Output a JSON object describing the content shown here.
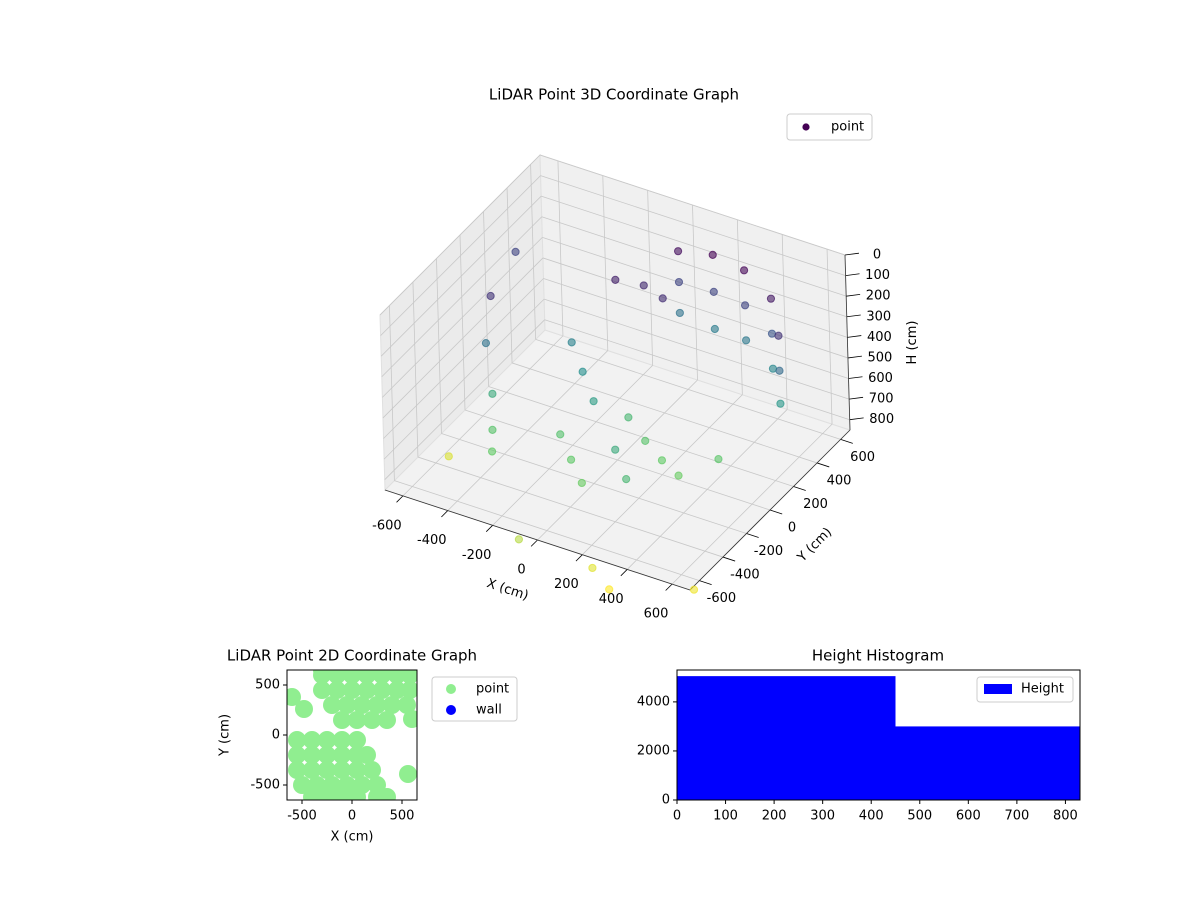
{
  "chart_data": [
    {
      "type": "scatter3d",
      "title": "LiDAR Point 3D Coordinate Graph",
      "xlabel": "X (cm)",
      "ylabel": "Y (cm)",
      "zlabel": "H (cm)",
      "xlim": [
        -680,
        680
      ],
      "ylim": [
        -680,
        680
      ],
      "zlim": [
        850,
        0
      ],
      "xticks": [
        -600,
        -400,
        -200,
        0,
        200,
        400,
        600
      ],
      "yticks": [
        -600,
        -400,
        -200,
        0,
        200,
        400,
        600
      ],
      "zticks": [
        0,
        100,
        200,
        300,
        400,
        500,
        600,
        700,
        800
      ],
      "colormap": "viridis",
      "grid": true,
      "legend": "upper right",
      "series": [
        {
          "name": "point",
          "color": "#440154",
          "x": [
            0,
            0,
            0,
            150,
            150,
            150,
            300,
            300,
            300,
            450,
            450,
            450,
            550,
            550,
            550,
            -550,
            -550,
            -500,
            -450,
            -400,
            0,
            100,
            200,
            300,
            400,
            -200,
            -100,
            0,
            -150,
            -50,
            50,
            -300,
            -200,
            -100,
            100,
            200,
            -650,
            300,
            600,
            200,
            -100,
            -650
          ],
          "y": [
            550,
            550,
            550,
            560,
            560,
            560,
            540,
            540,
            540,
            480,
            480,
            480,
            350,
            350,
            350,
            0,
            -50,
            -100,
            -200,
            -300,
            100,
            50,
            0,
            -50,
            100,
            -100,
            -200,
            -300,
            300,
            350,
            320,
            200,
            100,
            0,
            -200,
            -300,
            -200,
            -650,
            -500,
            -600,
            -650,
            400
          ],
          "z": [
            150,
            300,
            450,
            120,
            300,
            480,
            130,
            300,
            470,
            180,
            350,
            520,
            250,
            420,
            580,
            250,
            450,
            650,
            750,
            780,
            700,
            750,
            780,
            790,
            760,
            740,
            770,
            790,
            200,
            220,
            230,
            500,
            550,
            600,
            650,
            700,
            950,
            1000,
            980,
            960,
            900,
            300
          ]
        }
      ]
    },
    {
      "type": "scatter",
      "title": "LiDAR Point 2D Coordinate Graph",
      "xlabel": "X (cm)",
      "ylabel": "Y (cm)",
      "xlim": [
        -650,
        650
      ],
      "ylim": [
        -650,
        650
      ],
      "xticks": [
        -500,
        0,
        500
      ],
      "yticks": [
        -500,
        0,
        500
      ],
      "legend": "outside right",
      "series": [
        {
          "name": "point",
          "color": "#90ee90",
          "x": [
            -300,
            -150,
            0,
            150,
            300,
            450,
            580,
            -300,
            -150,
            0,
            150,
            300,
            450,
            580,
            -200,
            -50,
            100,
            250,
            400,
            550,
            -100,
            50,
            200,
            350,
            -550,
            -400,
            -250,
            -100,
            50,
            -550,
            -400,
            -250,
            -100,
            50,
            150,
            -550,
            -400,
            -250,
            -100,
            50,
            200,
            -500,
            -350,
            -200,
            -50,
            100,
            250,
            -400,
            -250,
            -100,
            50,
            250,
            350,
            -600,
            -480,
            600,
            560,
            -300
          ],
          "y": [
            600,
            600,
            600,
            600,
            600,
            600,
            600,
            450,
            450,
            450,
            450,
            450,
            450,
            450,
            300,
            300,
            300,
            300,
            300,
            300,
            150,
            150,
            150,
            150,
            -50,
            -50,
            -50,
            -50,
            -50,
            -200,
            -200,
            -200,
            -200,
            -200,
            -200,
            -350,
            -350,
            -350,
            -350,
            -350,
            -350,
            -500,
            -500,
            -500,
            -500,
            -500,
            -500,
            -620,
            -620,
            -620,
            -620,
            -620,
            -620,
            380,
            260,
            160,
            -390,
            650
          ]
        },
        {
          "name": "wall",
          "color": "#0000ff",
          "x": [],
          "y": []
        }
      ]
    },
    {
      "type": "histogram",
      "title": "Height Histogram",
      "bins": [
        0,
        450,
        830
      ],
      "xlim": [
        0,
        830
      ],
      "ylim": [
        0,
        5300
      ],
      "xticks": [
        0,
        100,
        200,
        300,
        400,
        500,
        600,
        700,
        800
      ],
      "yticks": [
        0,
        2000,
        4000
      ],
      "legend": "upper right",
      "series": [
        {
          "name": "Height",
          "color": "#0000ff",
          "values": [
            5050,
            3000
          ]
        }
      ]
    }
  ]
}
